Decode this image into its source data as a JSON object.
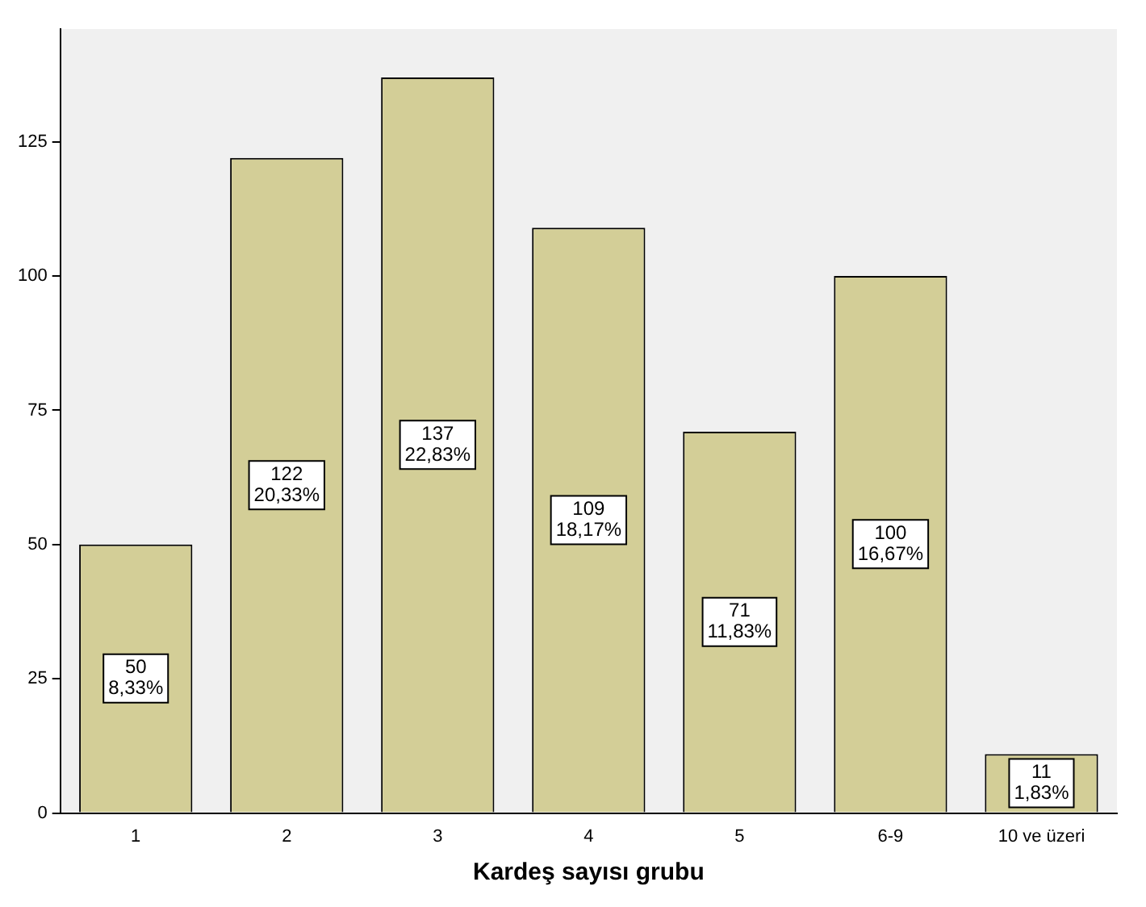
{
  "chart_data": {
    "type": "bar",
    "xlabel": "Kardeş sayısı grubu",
    "categories": [
      "1",
      "2",
      "3",
      "4",
      "5",
      "6-9",
      "10 ve üzeri"
    ],
    "values": [
      50,
      122,
      137,
      109,
      71,
      100,
      11
    ],
    "value_labels": [
      "50\n8,33%",
      "122\n20,33%",
      "137\n22,83%",
      "109\n18,17%",
      "71\n11,83%",
      "100\n16,67%",
      "11\n1,83%"
    ],
    "color": "#d3ce97",
    "ylim": [
      0,
      146
    ],
    "yticks": [
      0,
      25,
      50,
      75,
      100,
      125
    ],
    "grid": false,
    "legend": false
  }
}
